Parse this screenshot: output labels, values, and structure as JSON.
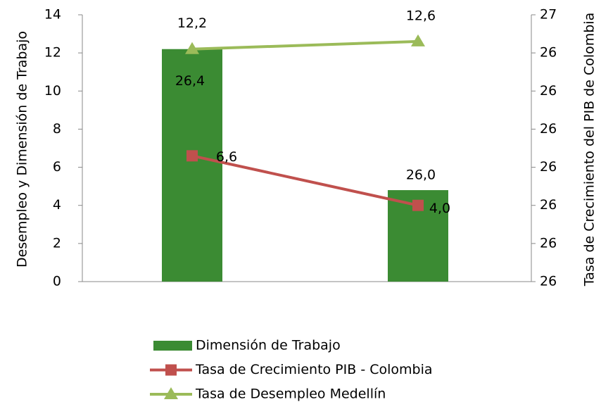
{
  "chart_data": {
    "type": "bar",
    "categories": [
      null,
      null
    ],
    "y_label": "Desempleo y Dimensión de Trabajo",
    "y2_label": "Tasa de Crecimiento del PIB de Colombia",
    "ylim": [
      0,
      14
    ],
    "yticks": [
      0,
      2,
      4,
      6,
      8,
      10,
      12,
      14
    ],
    "y2lim": [
      25.8,
      26.5
    ],
    "y2ticks": [
      {
        "value": 25.8,
        "label": "26"
      },
      {
        "value": 25.9,
        "label": "26"
      },
      {
        "value": 26.0,
        "label": "26"
      },
      {
        "value": 26.1,
        "label": "26"
      },
      {
        "value": 26.2,
        "label": "26"
      },
      {
        "value": 26.3,
        "label": "26"
      },
      {
        "value": 26.4,
        "label": "26"
      },
      {
        "value": 26.5,
        "label": "27"
      }
    ],
    "grid": false,
    "legend": "bottom",
    "series": [
      {
        "name": "Dimensión de Trabajo",
        "type": "bar",
        "axis": "y2",
        "color": "#3b8b33",
        "values": [
          26.41,
          26.04
        ],
        "value_labels": [
          "26,4",
          "26,0"
        ]
      },
      {
        "name": "Tasa de Crecimiento PIB - Colombia",
        "type": "line",
        "marker": "square",
        "color": "#c0504d",
        "values": [
          6.6,
          4.0
        ],
        "value_labels": [
          "6,6",
          "4,0"
        ]
      },
      {
        "name": "Tasa de Desempleo Medellín",
        "type": "line",
        "marker": "triangle",
        "color": "#9bbb59",
        "values": [
          12.2,
          12.6
        ],
        "value_labels": [
          "12,2",
          "12,6"
        ]
      }
    ]
  }
}
